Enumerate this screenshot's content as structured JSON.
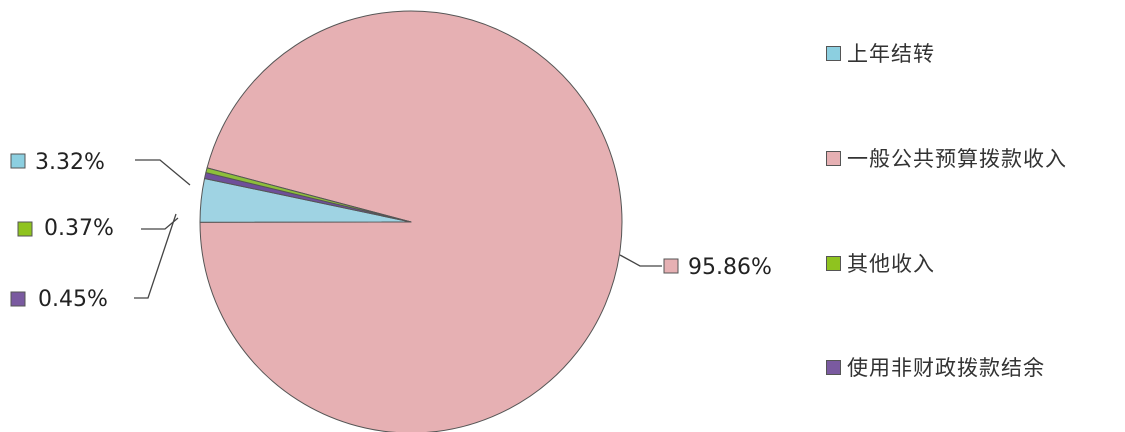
{
  "chart_data": {
    "type": "pie",
    "series": [
      {
        "name": "上年结转",
        "value": 3.32,
        "label": "3.32%",
        "color": "#9fd3e3",
        "legend_color": "#8ccfe0"
      },
      {
        "name": "一般公共预算拨款收入",
        "value": 95.86,
        "label": "95.86%",
        "color": "#e6b0b3",
        "legend_color": "#e6b0b3"
      },
      {
        "name": "其他收入",
        "value": 0.37,
        "label": "0.37%",
        "color": "#8dbf3a",
        "legend_color": "#8fc31f"
      },
      {
        "name": "使用非财政拨款结余",
        "value": 0.45,
        "label": "0.45%",
        "color": "#6f4f9a",
        "legend_color": "#7a5aa0"
      }
    ],
    "legend": "right",
    "title": ""
  }
}
